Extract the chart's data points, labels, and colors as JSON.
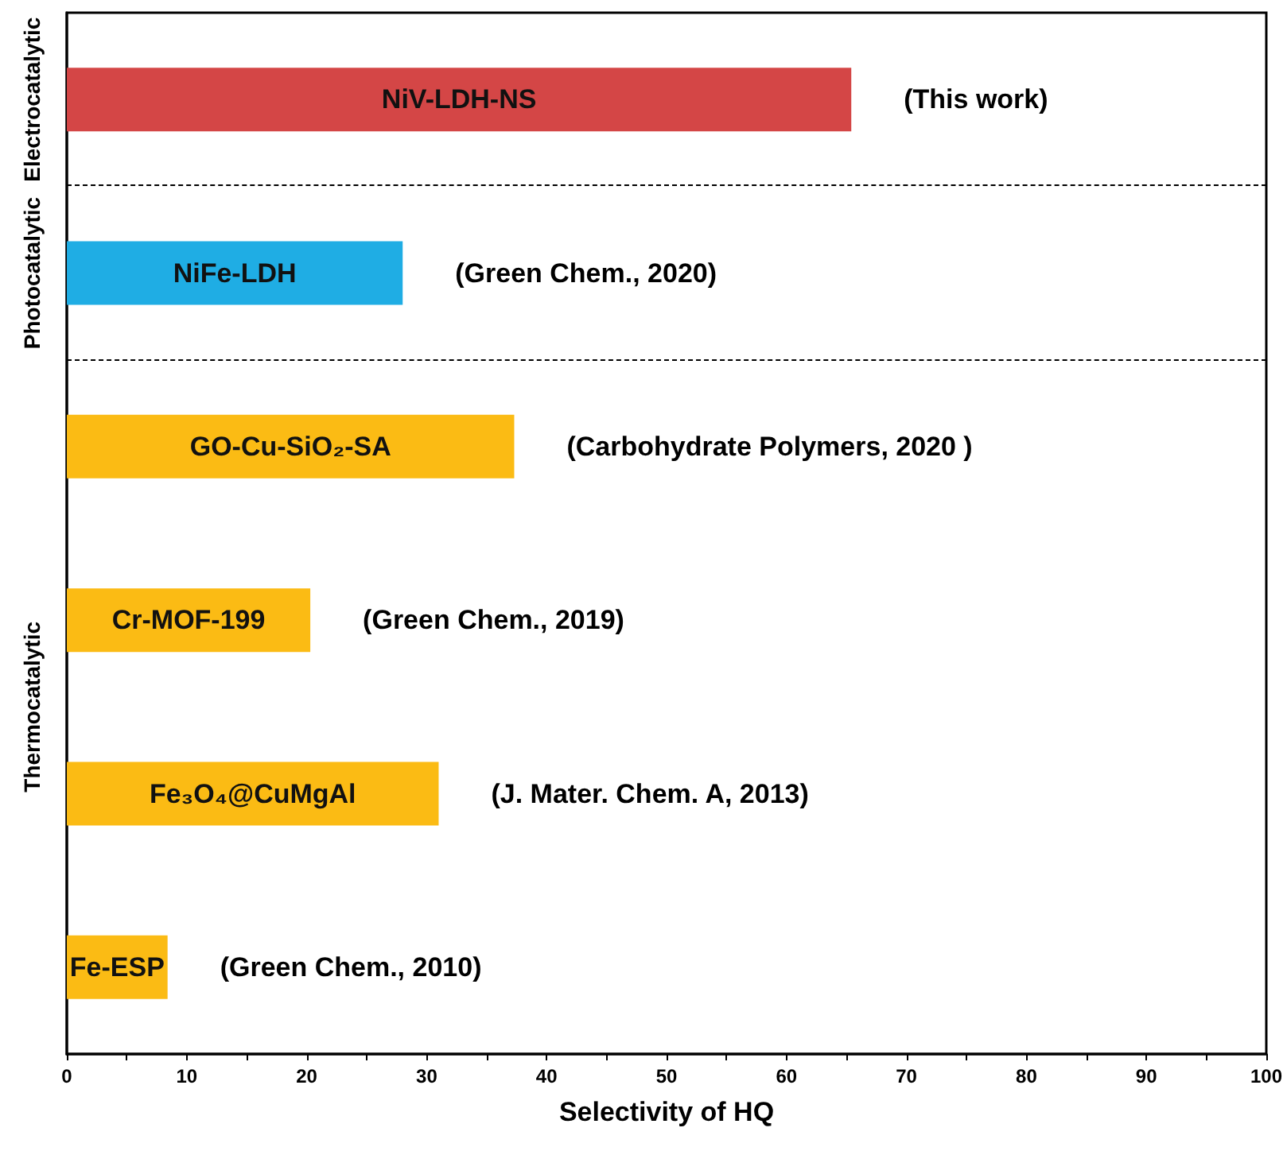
{
  "chart_data": {
    "type": "bar",
    "orientation": "horizontal",
    "xlabel": "Selectivity of HQ",
    "categories": [
      "NiV-LDH-NS",
      "NiFe-LDH",
      "GO-Cu-SiO₂-SA",
      "Cr-MOF-199",
      "Fe₃O₄@CuMgAl",
      "Fe-ESP"
    ],
    "values": [
      65.4,
      28.0,
      37.3,
      20.3,
      31.0,
      8.4
    ],
    "colors": [
      "#d44646",
      "#1fade4",
      "#fbbb14",
      "#fbbb14",
      "#fbbb14",
      "#fbbb14"
    ],
    "xlim": [
      0,
      100
    ],
    "xticks": [
      0,
      {
        "value": 5,
        "label": null
      },
      10,
      {
        "value": 15,
        "label": null
      },
      20,
      {
        "value": 25,
        "label": null
      },
      30,
      {
        "value": 35,
        "label": null
      },
      40,
      {
        "value": 45,
        "label": null
      },
      50,
      {
        "value": 55,
        "label": null
      },
      60,
      {
        "value": 65,
        "label": null
      },
      70,
      {
        "value": 75,
        "label": null
      },
      80,
      {
        "value": 85,
        "label": null
      },
      90,
      {
        "value": 95,
        "label": null
      },
      100
    ],
    "tick_labels": "x",
    "grid": false,
    "annotations": [
      "(This work)",
      "(Green Chem., 2020)",
      "(Carbohydrate Polymers, 2020 )",
      "(Green Chem., 2019)",
      "(J. Mater. Chem. A, 2013)",
      "(Green Chem., 2010)",
      "Electrocatalytic",
      "Photocatalytic",
      "Thermocatalytic"
    ]
  }
}
